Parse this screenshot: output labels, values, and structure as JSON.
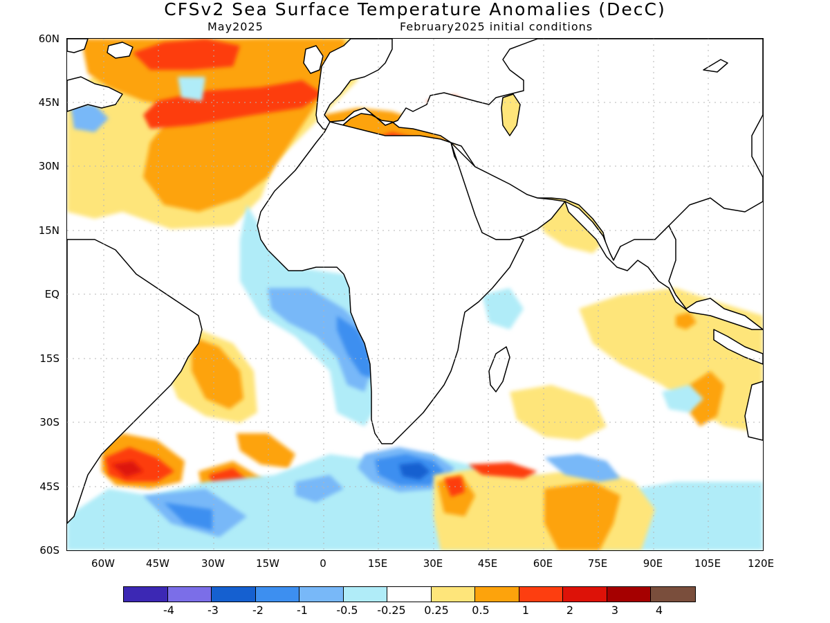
{
  "title": "CFSv2 Sea Surface Temperature Anomalies (DecC)",
  "subtitle_left": "May2025",
  "subtitle_right": "February2025 initial conditions",
  "map": {
    "lat_ticks": [
      "60N",
      "45N",
      "30N",
      "15N",
      "EQ",
      "15S",
      "30S",
      "45S",
      "60S"
    ],
    "lon_ticks": [
      "60W",
      "45W",
      "30W",
      "15W",
      "0",
      "15E",
      "30E",
      "45E",
      "60E",
      "75E",
      "90E",
      "105E",
      "120E"
    ],
    "lon_range_deg": [
      -70,
      120
    ],
    "lat_range_deg": [
      -60,
      60
    ],
    "grid": "dotted",
    "coastline_color": "#000000"
  },
  "colorbar": {
    "colors": [
      "#3c28b4",
      "#7b6ee8",
      "#1560d0",
      "#3d8ff0",
      "#78b8f8",
      "#b0ecf8",
      "#ffffff",
      "#fee57a",
      "#fda30c",
      "#fd3e10",
      "#dd1208",
      "#a50000",
      "#7a4e3c"
    ],
    "labels": [
      "-4",
      "-3",
      "-2",
      "-1",
      "-0.5",
      "-0.25",
      "0.25",
      "0.5",
      "1",
      "2",
      "3",
      "4"
    ]
  },
  "chart_data": {
    "type": "heatmap",
    "title": "CFSv2 Sea Surface Temperature Anomalies (DecC)",
    "variable": "SST anomaly",
    "units": "DecC",
    "valid_month": "May2025",
    "initial_conditions": "February2025",
    "lon_range": [
      -70,
      120
    ],
    "lat_range": [
      -60,
      60
    ],
    "levels": [
      -4,
      -3,
      -2,
      -1,
      -0.5,
      -0.25,
      0.25,
      0.5,
      1,
      2,
      3,
      4
    ],
    "features": [
      {
        "region": "North Atlantic 30N-55N, 60W-10W",
        "anomaly_range": [
          0.5,
          2
        ]
      },
      {
        "region": "Mediterranean and Black Sea",
        "anomaly_range": [
          0.5,
          2
        ]
      },
      {
        "region": "Equatorial/South-east Atlantic (Gulf of Guinea to Angola)",
        "anomaly_range": [
          -2,
          -0.25
        ]
      },
      {
        "region": "Off Brazil 10S-25S",
        "anomaly_range": [
          0.5,
          2
        ]
      },
      {
        "region": "South Atlantic 40S-47S, 55W-50W",
        "anomaly_range": [
          1,
          3
        ]
      },
      {
        "region": "South Atlantic 40S-50S, 30W-15W",
        "anomaly_range": [
          1,
          3
        ]
      },
      {
        "region": "Southern Ocean 40S-45S, 20E-35E",
        "anomaly_range": [
          -2,
          -0.5
        ]
      },
      {
        "region": "South Indian Ocean 45S-58S, 30E-80E",
        "anomaly_range": [
          0.5,
          2
        ]
      },
      {
        "region": "Arabian Sea and Bay of Bengal",
        "anomaly_range": [
          0.25,
          0.5
        ]
      },
      {
        "region": "Eastern Indian Ocean 0-25S, 85E-110E",
        "anomaly_range": [
          0.25,
          1
        ]
      }
    ]
  }
}
